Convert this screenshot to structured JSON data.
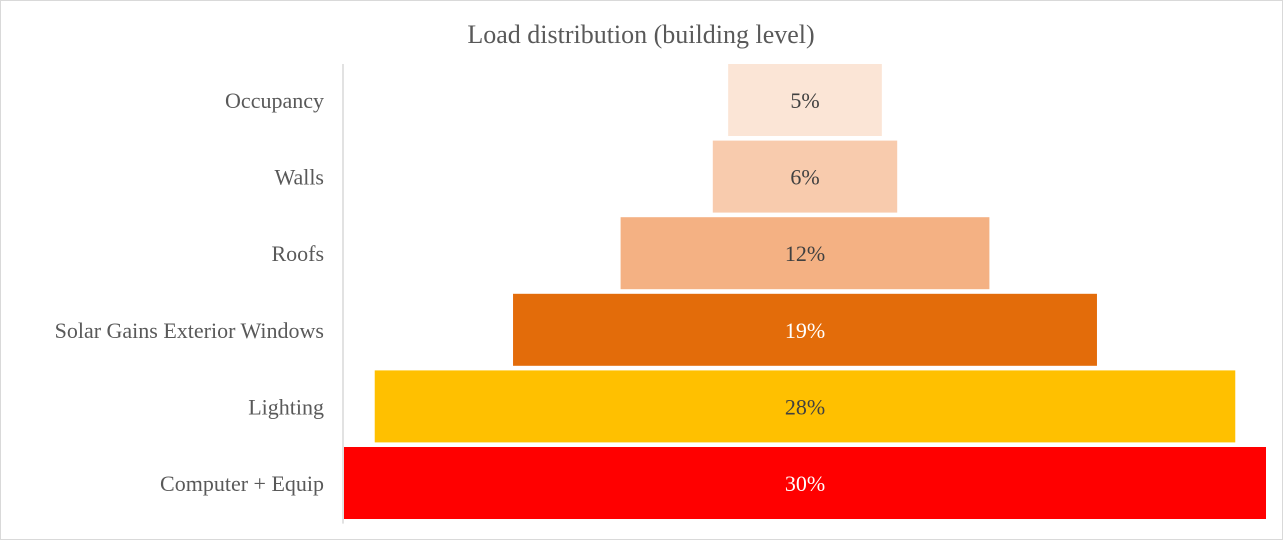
{
  "chart_data": {
    "type": "bar",
    "orientation": "horizontal-funnel",
    "title": "Load distribution (building level)",
    "categories": [
      "Occupancy",
      "Walls",
      "Roofs",
      "Solar Gains Exterior Windows",
      "Lighting",
      "Computer + Equip"
    ],
    "values": [
      5,
      6,
      12,
      19,
      28,
      30
    ],
    "data_labels": [
      "5%",
      "6%",
      "12%",
      "19%",
      "28%",
      "30%"
    ],
    "colors": [
      "#fbe5d6",
      "#f8cbad",
      "#f4b183",
      "#e36c0a",
      "#ffc000",
      "#ff0000"
    ],
    "label_colors": [
      "#404040",
      "#404040",
      "#404040",
      "#ffffff",
      "#404040",
      "#ffffff"
    ],
    "legend": "none",
    "grid": false
  }
}
